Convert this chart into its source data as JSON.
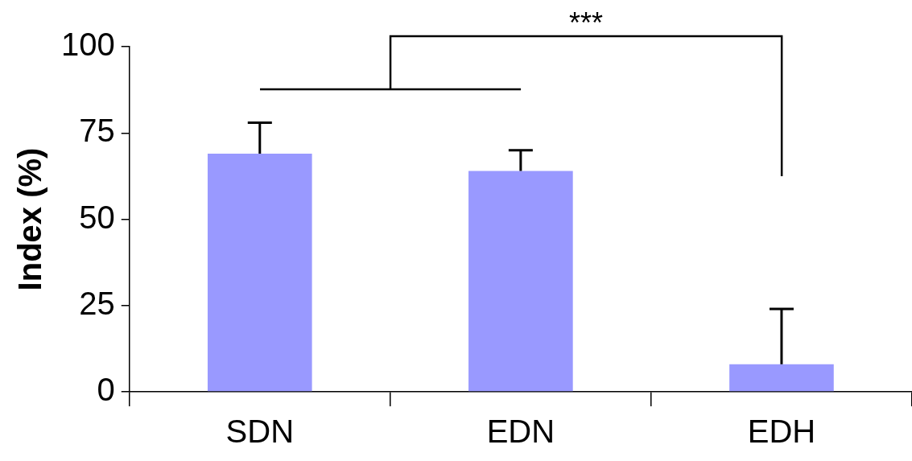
{
  "chart_data": {
    "type": "bar",
    "ylabel": "Index (%)",
    "categories": [
      "SDN",
      "EDN",
      "EDH"
    ],
    "values": [
      69,
      64,
      8
    ],
    "color": "#9999ff",
    "errors": [
      [
        69,
        78
      ],
      [
        64,
        70
      ],
      [
        8,
        24
      ]
    ],
    "ylim": [
      0,
      100
    ],
    "yticks": [
      0,
      25,
      50,
      75,
      100
    ],
    "grid": false,
    "legend": false,
    "annotations": [
      "***"
    ]
  }
}
